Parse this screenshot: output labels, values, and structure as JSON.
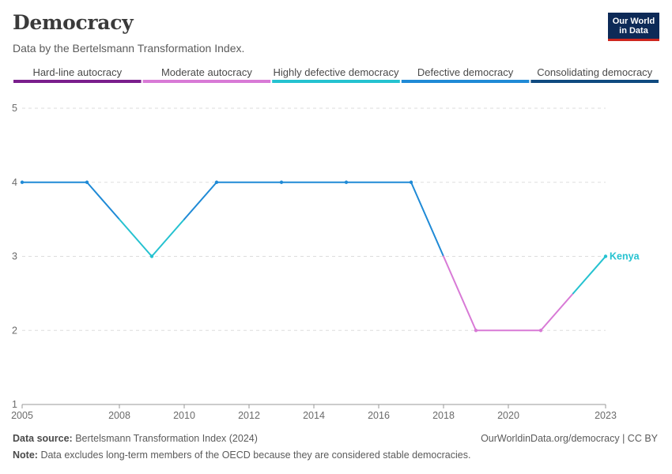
{
  "header": {
    "title": "Democracy",
    "subtitle": "Data by the Bertelsmann Transformation Index.",
    "logo_line1": "Our World",
    "logo_line2": "in Data"
  },
  "legend": [
    {
      "label": "Hard-line autocracy",
      "color": "#7a1e8c"
    },
    {
      "label": "Moderate autocracy",
      "color": "#d87ad6"
    },
    {
      "label": "Highly defective democracy",
      "color": "#25c2d0"
    },
    {
      "label": "Defective democracy",
      "color": "#1f8ad6"
    },
    {
      "label": "Consolidating democracy",
      "color": "#0f4a80"
    }
  ],
  "chart_data": {
    "type": "line",
    "x_ticks": [
      "2005",
      "2008",
      "2010",
      "2012",
      "2014",
      "2016",
      "2018",
      "2020",
      "2023"
    ],
    "y_ticks": [
      "1",
      "2",
      "3",
      "4",
      "5"
    ],
    "ylim": [
      1,
      5
    ],
    "xlim": [
      2005,
      2023
    ],
    "grid": true,
    "series": [
      {
        "name": "Kenya",
        "color": "#25c2d0",
        "x": [
          2005,
          2007,
          2009,
          2011,
          2013,
          2015,
          2017,
          2019,
          2021,
          2023
        ],
        "y": [
          4,
          4,
          3,
          4,
          4,
          4,
          4,
          2,
          2,
          3
        ]
      }
    ]
  },
  "footer": {
    "source_label": "Data source:",
    "source_text": "Bertelsmann Transformation Index (2024)",
    "right_text": "OurWorldinData.org/democracy | CC BY",
    "note_label": "Note:",
    "note_text": "Data excludes long-term members of the OECD because they are considered stable democracies."
  }
}
